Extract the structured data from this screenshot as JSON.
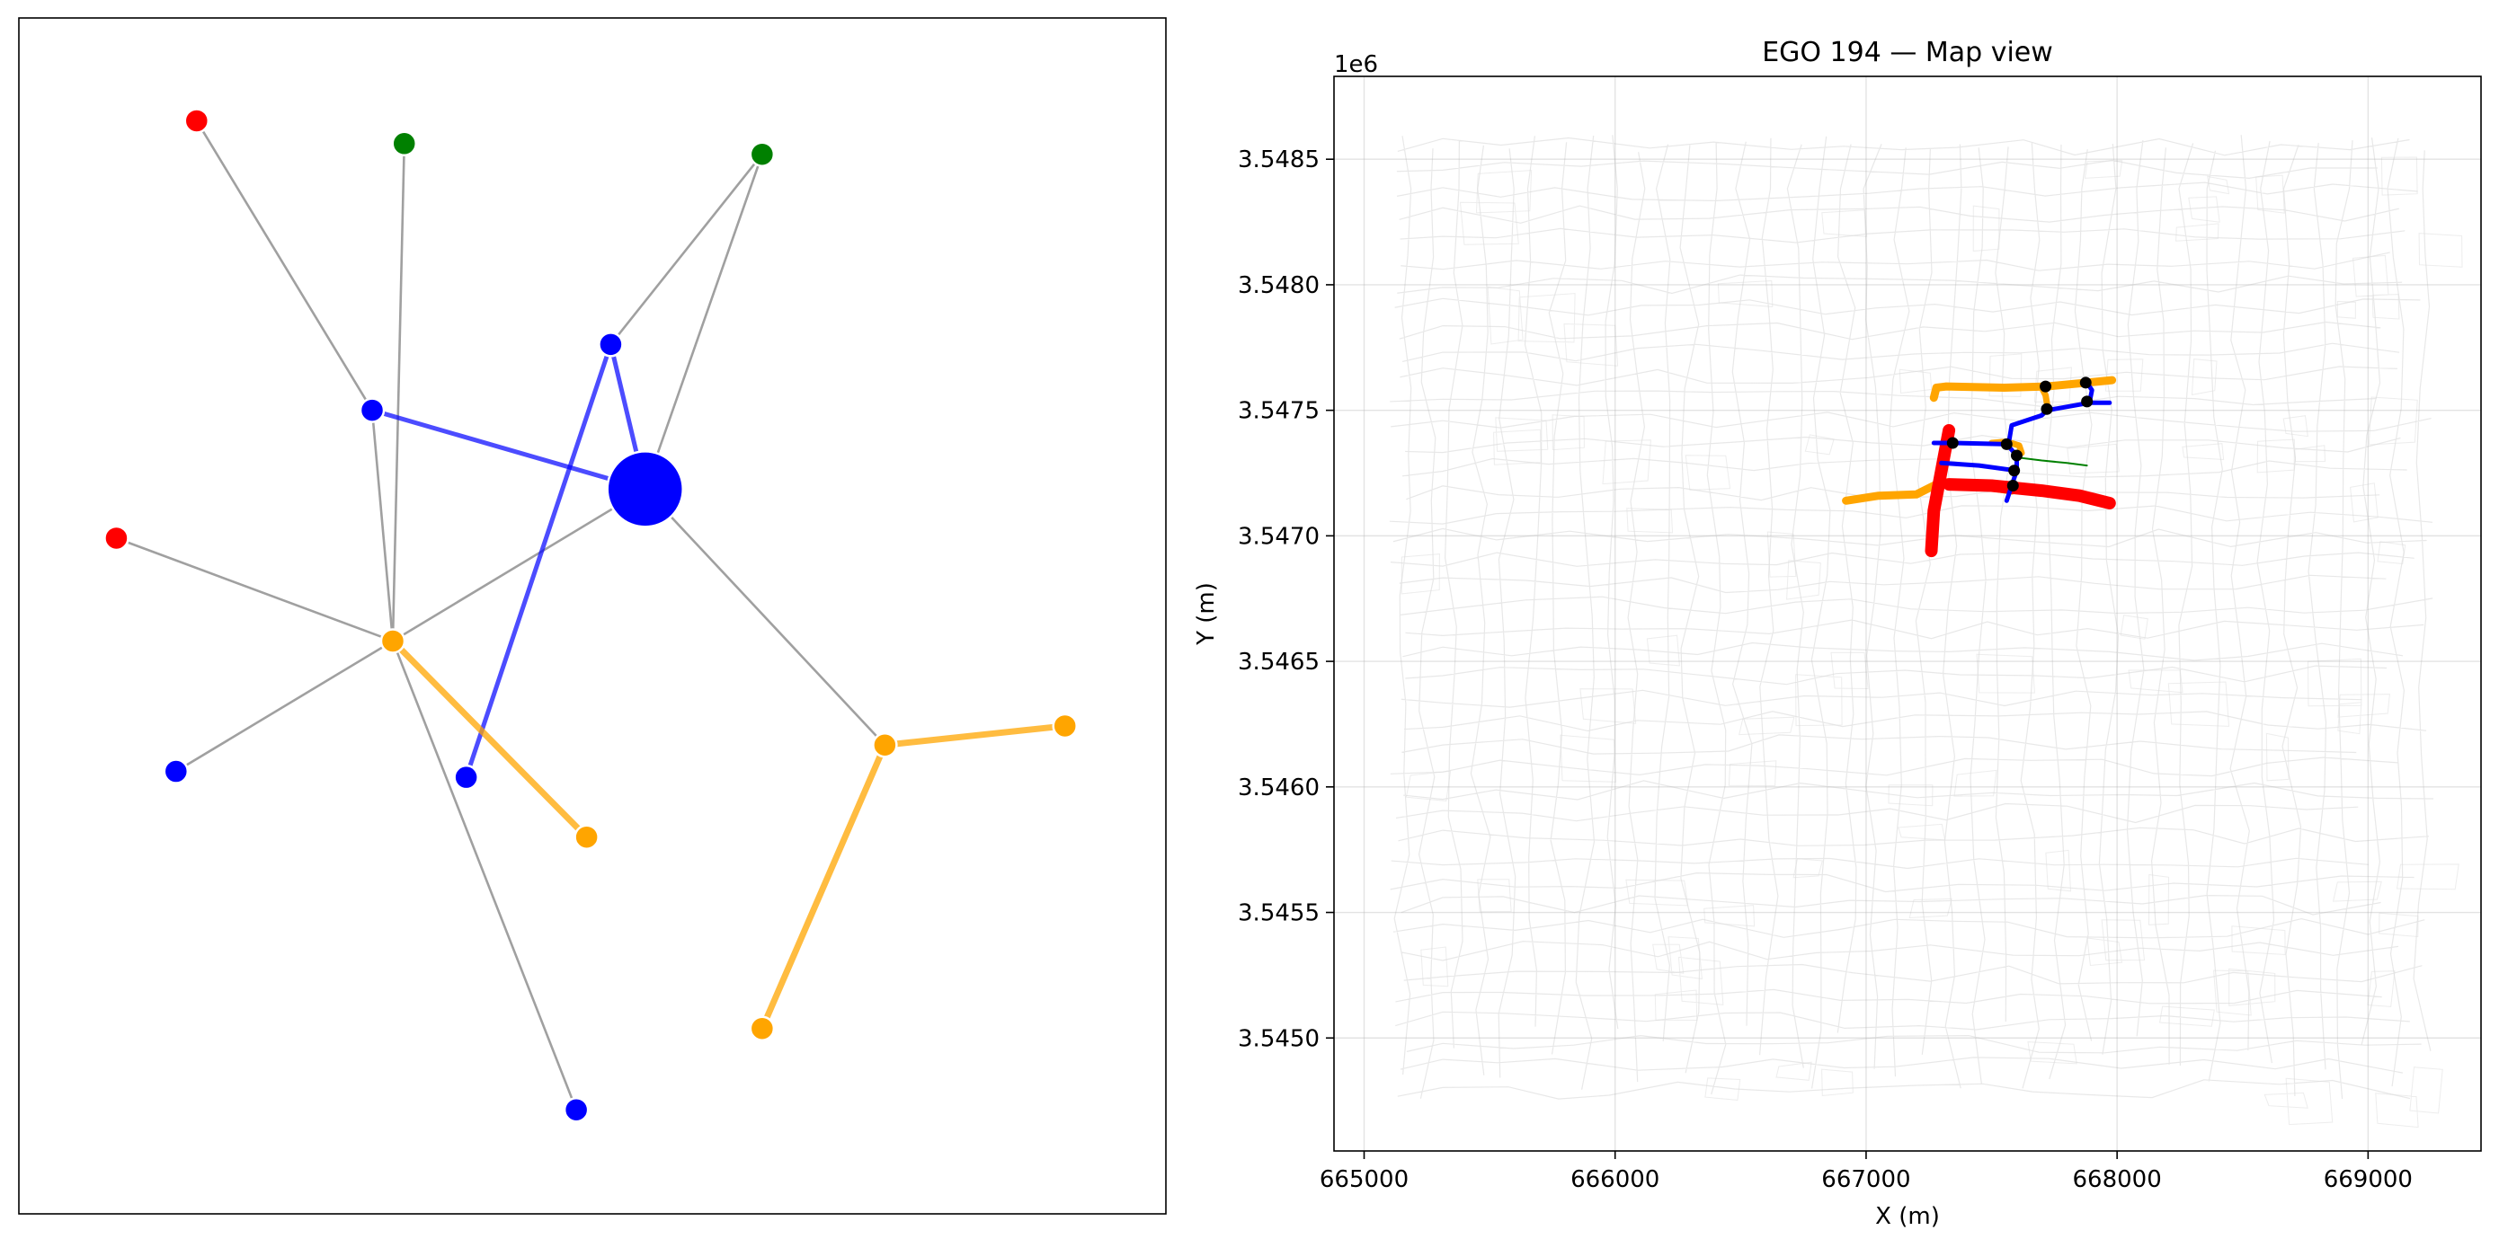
{
  "chart_data": [
    {
      "type": "network",
      "edge_color_default": "#a0a0a0",
      "node_colors": {
        "red": "#ff0000",
        "green": "#008000",
        "blue": "#0000ff",
        "orange": "#ffa500"
      },
      "nodes": [
        {
          "id": "r1",
          "x": 0.155,
          "y": 0.914,
          "color": "red"
        },
        {
          "id": "g1",
          "x": 0.336,
          "y": 0.895,
          "color": "green"
        },
        {
          "id": "g2",
          "x": 0.648,
          "y": 0.886,
          "color": "green"
        },
        {
          "id": "b1",
          "x": 0.516,
          "y": 0.727,
          "color": "blue"
        },
        {
          "id": "b2",
          "x": 0.308,
          "y": 0.672,
          "color": "blue"
        },
        {
          "id": "ego",
          "x": 0.546,
          "y": 0.606,
          "color": "blue",
          "ego": true
        },
        {
          "id": "r2",
          "x": 0.085,
          "y": 0.565,
          "color": "red"
        },
        {
          "id": "o1",
          "x": 0.326,
          "y": 0.479,
          "color": "orange"
        },
        {
          "id": "b3",
          "x": 0.137,
          "y": 0.37,
          "color": "blue"
        },
        {
          "id": "b4",
          "x": 0.39,
          "y": 0.365,
          "color": "blue"
        },
        {
          "id": "o2",
          "x": 0.495,
          "y": 0.315,
          "color": "orange"
        },
        {
          "id": "o3",
          "x": 0.755,
          "y": 0.392,
          "color": "orange"
        },
        {
          "id": "o4",
          "x": 0.912,
          "y": 0.408,
          "color": "orange"
        },
        {
          "id": "o5",
          "x": 0.648,
          "y": 0.155,
          "color": "orange"
        },
        {
          "id": "b5",
          "x": 0.486,
          "y": 0.087,
          "color": "blue"
        }
      ],
      "edges": [
        {
          "source": "r1",
          "target": "b2",
          "kind": "plain"
        },
        {
          "source": "g1",
          "target": "o1",
          "kind": "plain"
        },
        {
          "source": "g2",
          "target": "b1",
          "kind": "plain"
        },
        {
          "source": "g2",
          "target": "ego",
          "kind": "plain"
        },
        {
          "source": "b2",
          "target": "o1",
          "kind": "plain"
        },
        {
          "source": "r2",
          "target": "o1",
          "kind": "plain"
        },
        {
          "source": "b3",
          "target": "o1",
          "kind": "plain"
        },
        {
          "source": "o1",
          "target": "ego",
          "kind": "plain"
        },
        {
          "source": "o1",
          "target": "b5",
          "kind": "plain"
        },
        {
          "source": "ego",
          "target": "o3",
          "kind": "plain"
        },
        {
          "source": "b2",
          "target": "ego",
          "kind": "blue"
        },
        {
          "source": "b1",
          "target": "ego",
          "kind": "blue"
        },
        {
          "source": "b1",
          "target": "b4",
          "kind": "blue"
        },
        {
          "source": "o1",
          "target": "o2",
          "kind": "orange"
        },
        {
          "source": "o3",
          "target": "o4",
          "kind": "orange"
        },
        {
          "source": "o3",
          "target": "o5",
          "kind": "orange"
        }
      ]
    },
    {
      "type": "line",
      "title": "EGO 194 — Map view",
      "xlabel": "X (m)",
      "ylabel": "Y (m)",
      "y_offset_label": "1e6",
      "xlim": [
        664880,
        669450
      ],
      "ylim": [
        3.54455,
        3.54883
      ],
      "xticks": [
        665000,
        666000,
        667000,
        668000,
        669000
      ],
      "xtick_labels": [
        "665000",
        "666000",
        "667000",
        "668000",
        "669000"
      ],
      "yticks": [
        3.545,
        3.5455,
        3.546,
        3.5465,
        3.547,
        3.5475,
        3.548,
        3.5485
      ],
      "ytick_labels": [
        "3.5450",
        "3.5455",
        "3.5460",
        "3.5465",
        "3.5470",
        "3.5475",
        "3.5480",
        "3.5485"
      ],
      "grid": true,
      "series": [
        {
          "color": "#ffa500",
          "width": 9,
          "x": [
            667270,
            667280,
            667320,
            667550,
            667720,
            667880,
            667980
          ],
          "y": [
            3.54755,
            3.54759,
            3.547595,
            3.54759,
            3.547595,
            3.54761,
            3.54762
          ]
        },
        {
          "color": "#ffa500",
          "width": 7,
          "x": [
            667700,
            667715,
            667725
          ],
          "y": [
            3.54759,
            3.54756,
            3.5475
          ]
        },
        {
          "color": "#ffa500",
          "width": 9,
          "x": [
            666920,
            667050,
            667200,
            667300,
            667420,
            667580
          ],
          "y": [
            3.54714,
            3.54716,
            3.547165,
            3.547215,
            3.547205,
            3.54718
          ]
        },
        {
          "color": "#ffa500",
          "width": 7,
          "x": [
            667500,
            667560,
            667610,
            667620
          ],
          "y": [
            3.54737,
            3.547375,
            3.54736,
            3.54733
          ]
        },
        {
          "color": "#ff0000",
          "width": 14,
          "x": [
            667330,
            667300,
            667270,
            667260
          ],
          "y": [
            3.54742,
            3.54726,
            3.5471,
            3.54694
          ]
        },
        {
          "color": "#ff0000",
          "width": 14,
          "x": [
            667330,
            667500,
            667700,
            667850,
            667970
          ],
          "y": [
            3.547205,
            3.5472,
            3.54718,
            3.54716,
            3.54713
          ]
        },
        {
          "color": "#0000ff",
          "width": 5,
          "x": [
            667270,
            667350,
            667560,
            667600,
            667600,
            667580,
            667560
          ],
          "y": [
            3.54737,
            3.54737,
            3.547365,
            3.54732,
            3.54726,
            3.5472,
            3.54714
          ]
        },
        {
          "color": "#0000ff",
          "width": 5,
          "x": [
            667300,
            667450,
            667560,
            667600
          ],
          "y": [
            3.54729,
            3.54728,
            3.547265,
            3.54726
          ]
        },
        {
          "color": "#0000ff",
          "width": 5,
          "x": [
            667570,
            667580,
            667700,
            667720,
            667890,
            667970
          ],
          "y": [
            3.54738,
            3.54744,
            3.54748,
            3.5475,
            3.54753,
            3.54753
          ]
        },
        {
          "color": "#0000ff",
          "width": 5,
          "x": [
            667880,
            667900,
            667890
          ],
          "y": [
            3.54761,
            3.54758,
            3.54753
          ]
        },
        {
          "color": "#008000",
          "width": 2,
          "x": [
            667620,
            667700,
            667800,
            667880
          ],
          "y": [
            3.54731,
            3.5473,
            3.54729,
            3.54728
          ]
        }
      ],
      "markers": {
        "color": "#000000",
        "x": [
          667345,
          667560,
          667715,
          667720,
          667875,
          667880,
          667600,
          667590,
          667585
        ],
        "y": [
          3.54737,
          3.547365,
          3.547595,
          3.547505,
          3.54761,
          3.547535,
          3.54732,
          3.54726,
          3.5472
        ]
      }
    }
  ]
}
